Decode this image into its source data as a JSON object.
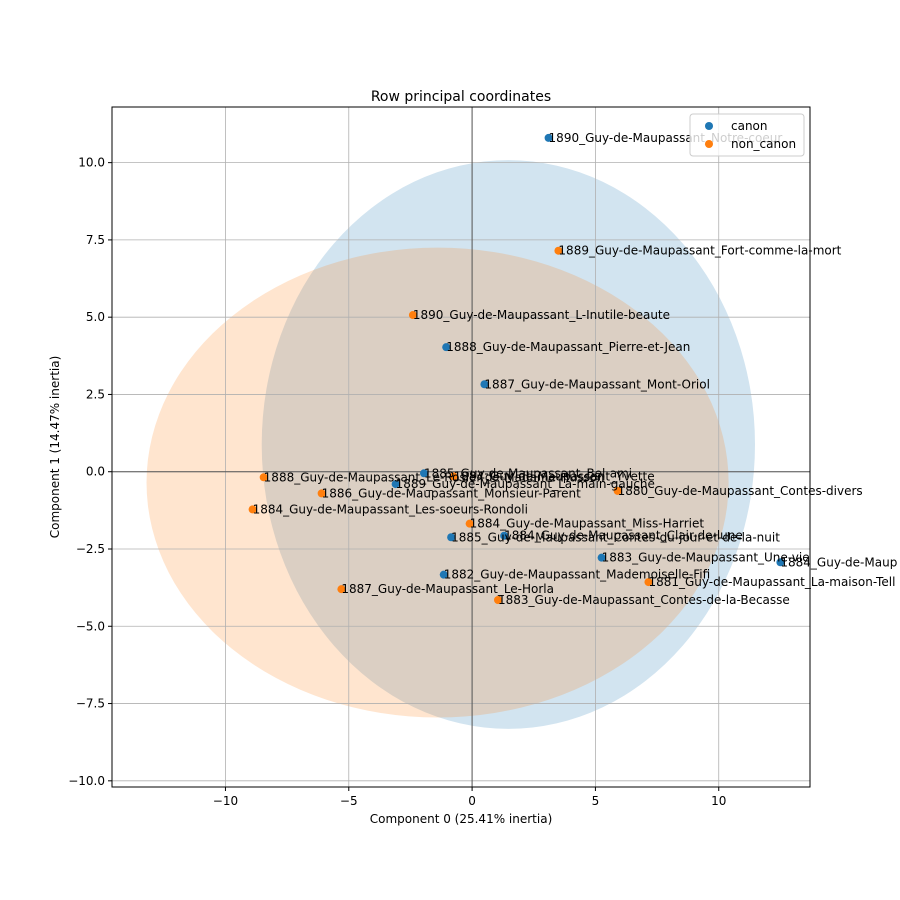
{
  "chart_data": {
    "type": "scatter",
    "title": "Row principal coordinates",
    "xlabel": "Component 0 (25.41% inertia)",
    "ylabel": "Component 1 (14.47% inertia)",
    "xlim": [
      -14.6,
      13.7
    ],
    "ylim": [
      -10.2,
      11.8
    ],
    "xticks": [
      -10,
      -5,
      0,
      5,
      10
    ],
    "xtick_labels": [
      "−10",
      "−5",
      "0",
      "5",
      "10"
    ],
    "yticks": [
      -10,
      -7.5,
      -5,
      -2.5,
      0,
      2.5,
      5,
      7.5,
      10
    ],
    "ytick_labels": [
      "−10.0",
      "−7.5",
      "−5.0",
      "−2.5",
      "0.0",
      "2.5",
      "5.0",
      "7.5",
      "10.0"
    ],
    "grid": true,
    "legend_position": "top-right",
    "series": [
      {
        "name": "canon",
        "color": "#1f77b4",
        "ellipse": {
          "cx": 1.47,
          "cy": 0.88,
          "rx": 10.0,
          "ry": 9.2
        },
        "points": [
          {
            "x": 3.1,
            "y": 10.8,
            "label": "1890_Guy-de-Maupassant_Notre-coeur"
          },
          {
            "x": -1.05,
            "y": 4.03,
            "label": "1888_Guy-de-Maupassant_Pierre-et-Jean"
          },
          {
            "x": 0.5,
            "y": 2.83,
            "label": "1887_Guy-de-Maupassant_Mont-Oriol"
          },
          {
            "x": -1.95,
            "y": -0.05,
            "label": "1885_Guy-de-Maupassant_Bel-ami"
          },
          {
            "x": -3.1,
            "y": -0.4,
            "label": "1889_Guy-de-Maupassant_La-main-gauche"
          },
          {
            "x": -0.85,
            "y": -2.12,
            "label": "1885_Guy-de-Maupassant_Contes-du-jour-et-de-la-nuit"
          },
          {
            "x": 1.3,
            "y": -2.07,
            "label": "1884_Guy-de-Maupassant_Clair-de-lune"
          },
          {
            "x": 5.25,
            "y": -2.78,
            "label": "1883_Guy-de-Maupassant_Une-vie"
          },
          {
            "x": 12.5,
            "y": -2.93,
            "label": "1884_Guy-de-Maup"
          },
          {
            "x": -1.15,
            "y": -3.33,
            "label": "1882_Guy-de-Maupassant_Mademoiselle-Fifi"
          }
        ]
      },
      {
        "name": "non_canon",
        "color": "#ff7f0e",
        "ellipse": {
          "cx": -1.4,
          "cy": -0.35,
          "rx": 11.8,
          "ry": 7.6
        },
        "points": [
          {
            "x": 3.5,
            "y": 7.15,
            "label": "1889_Guy-de-Maupassant_Fort-comme-la-mort"
          },
          {
            "x": -2.4,
            "y": 5.07,
            "label": "1890_Guy-de-Maupassant_L-Inutile-beaute"
          },
          {
            "x": -0.75,
            "y": -0.15,
            "label": "1884_Guy-de-Maupassant_Yvette"
          },
          {
            "x": -8.45,
            "y": -0.18,
            "label": "1888_Guy-de-Maupassant_Le-Rosier-de-Madame-Husson"
          },
          {
            "x": -6.1,
            "y": -0.7,
            "label": "1886_Guy-de-Maupassant_Monsieur-Parent"
          },
          {
            "x": 5.9,
            "y": -0.62,
            "label": "1880_Guy-de-Maupassant_Contes-divers"
          },
          {
            "x": -8.9,
            "y": -1.22,
            "label": "1884_Guy-de-Maupassant_Les-soeurs-Rondoli"
          },
          {
            "x": -0.1,
            "y": -1.68,
            "label": "1884_Guy-de-Maupassant_Miss-Harriet"
          },
          {
            "x": 7.15,
            "y": -3.57,
            "label": "1881_Guy-de-Maupassant_La-maison-Tell"
          },
          {
            "x": -5.3,
            "y": -3.8,
            "label": "1887_Guy-de-Maupassant_Le-Horla"
          },
          {
            "x": 1.05,
            "y": -4.15,
            "label": "1883_Guy-de-Maupassant_Contes-de-la-Becasse"
          }
        ]
      }
    ]
  }
}
